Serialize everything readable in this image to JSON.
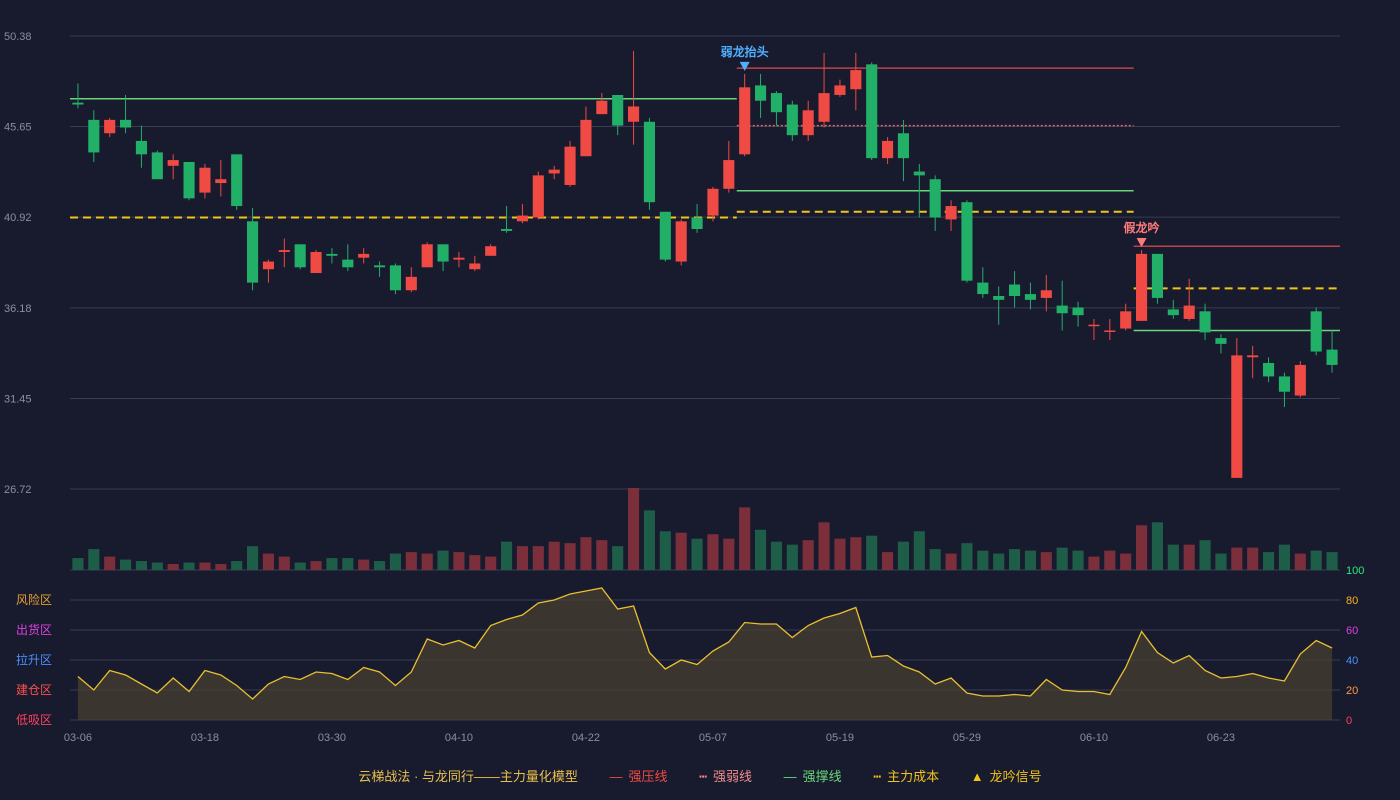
{
  "colors": {
    "background": "#181a2e",
    "grid": "#3a3d52",
    "up": "#ef4a43",
    "down": "#22b068",
    "vol_up": "#7a2f3b",
    "vol_down": "#1e5e48",
    "cost": "#f0c419",
    "strong_press": "#c0404a",
    "weak": "#e06a6a",
    "support": "#6ad67a",
    "osc_line": "#e8c030",
    "osc_fill": "#4a4230"
  },
  "chart_data": {
    "type": "candlestick",
    "price_axis_ticks": [
      "50.38",
      "45.65",
      "40.92",
      "36.18",
      "31.45",
      "26.72"
    ],
    "ylim": [
      26.72,
      50.38
    ],
    "x_tick_labels": [
      {
        "i": 0,
        "label": "03-06"
      },
      {
        "i": 8,
        "label": "03-18"
      },
      {
        "i": 16,
        "label": "03-30"
      },
      {
        "i": 24,
        "label": "04-10"
      },
      {
        "i": 32,
        "label": "04-22"
      },
      {
        "i": 40,
        "label": "05-07"
      },
      {
        "i": 48,
        "label": "05-19"
      },
      {
        "i": 56,
        "label": "05-29"
      },
      {
        "i": 64,
        "label": "06-10"
      },
      {
        "i": 72,
        "label": "06-23"
      }
    ],
    "candles": [
      [
        46.9,
        46.8,
        47.9,
        46.6,
        8
      ],
      [
        46.0,
        44.3,
        46.5,
        43.8,
        14
      ],
      [
        45.3,
        46.0,
        46.1,
        45.1,
        9
      ],
      [
        46.0,
        45.6,
        47.3,
        45.3,
        7
      ],
      [
        44.9,
        44.2,
        45.7,
        43.5,
        6
      ],
      [
        44.3,
        42.9,
        44.4,
        42.9,
        5
      ],
      [
        43.6,
        43.9,
        44.2,
        42.9,
        4
      ],
      [
        43.8,
        41.9,
        43.8,
        41.8,
        5
      ],
      [
        42.2,
        43.5,
        43.7,
        41.9,
        5
      ],
      [
        42.7,
        42.9,
        43.9,
        42.0,
        4
      ],
      [
        44.2,
        41.5,
        44.2,
        41.3,
        6
      ],
      [
        40.7,
        37.5,
        41.4,
        37.1,
        16
      ],
      [
        38.2,
        38.6,
        38.7,
        37.5,
        11
      ],
      [
        39.1,
        39.2,
        39.8,
        38.3,
        9
      ],
      [
        39.5,
        38.3,
        39.5,
        38.2,
        5
      ],
      [
        38.0,
        39.1,
        39.2,
        38.0,
        6
      ],
      [
        39.0,
        38.9,
        39.3,
        38.5,
        8
      ],
      [
        38.7,
        38.3,
        39.5,
        38.1,
        8
      ],
      [
        38.8,
        39.0,
        39.3,
        38.5,
        7
      ],
      [
        38.4,
        38.3,
        38.6,
        37.8,
        6
      ],
      [
        38.4,
        37.1,
        38.5,
        36.9,
        11
      ],
      [
        37.1,
        37.8,
        38.3,
        37.0,
        12
      ],
      [
        38.3,
        39.5,
        39.6,
        38.3,
        11
      ],
      [
        39.5,
        38.6,
        39.5,
        38.1,
        13
      ],
      [
        38.7,
        38.8,
        39.1,
        38.3,
        12
      ],
      [
        38.2,
        38.5,
        38.9,
        38.1,
        10
      ],
      [
        38.9,
        39.4,
        39.5,
        38.9,
        9
      ],
      [
        40.3,
        40.2,
        41.5,
        40.1,
        19
      ],
      [
        40.7,
        41.0,
        41.6,
        40.6,
        16
      ],
      [
        40.9,
        43.1,
        43.3,
        40.8,
        16
      ],
      [
        43.2,
        43.4,
        43.6,
        42.9,
        19
      ],
      [
        42.6,
        44.6,
        44.9,
        42.5,
        18
      ],
      [
        44.1,
        46.0,
        46.7,
        44.1,
        22
      ],
      [
        46.3,
        47.0,
        47.4,
        46.3,
        20
      ],
      [
        47.3,
        45.7,
        47.3,
        45.2,
        16
      ],
      [
        45.9,
        46.7,
        49.6,
        44.7,
        55
      ],
      [
        45.9,
        41.7,
        46.1,
        41.3,
        40
      ],
      [
        41.2,
        38.7,
        41.2,
        38.6,
        26
      ],
      [
        38.6,
        40.7,
        40.8,
        38.4,
        25
      ],
      [
        40.9,
        40.3,
        41.6,
        40.1,
        21
      ],
      [
        41.0,
        42.4,
        42.5,
        40.7,
        24
      ],
      [
        42.4,
        43.9,
        44.9,
        42.2,
        21
      ],
      [
        44.2,
        47.7,
        48.4,
        44.1,
        42
      ],
      [
        47.8,
        47.0,
        48.4,
        46.1,
        27
      ],
      [
        47.4,
        46.4,
        47.5,
        45.7,
        19
      ],
      [
        46.8,
        45.2,
        47.0,
        44.9,
        17
      ],
      [
        45.2,
        46.5,
        47.0,
        44.9,
        20
      ],
      [
        45.9,
        47.4,
        49.5,
        45.6,
        32
      ],
      [
        47.3,
        47.8,
        48.1,
        47.2,
        21
      ],
      [
        47.6,
        48.6,
        49.5,
        46.5,
        22
      ],
      [
        48.9,
        44.0,
        49.0,
        43.9,
        23
      ],
      [
        44.0,
        44.9,
        45.1,
        43.7,
        12
      ],
      [
        45.3,
        44.0,
        46.0,
        42.8,
        19
      ],
      [
        43.3,
        43.1,
        43.7,
        40.9,
        26
      ],
      [
        42.9,
        40.9,
        43.1,
        40.2,
        14
      ],
      [
        40.8,
        41.5,
        41.8,
        40.2,
        11
      ],
      [
        41.7,
        37.6,
        41.8,
        37.5,
        18
      ],
      [
        37.5,
        36.9,
        38.3,
        36.7,
        13
      ],
      [
        36.8,
        36.6,
        37.3,
        35.3,
        11
      ],
      [
        37.4,
        36.8,
        38.1,
        36.2,
        14
      ],
      [
        36.9,
        36.6,
        37.5,
        36.1,
        13
      ],
      [
        36.7,
        37.1,
        37.9,
        36.0,
        12
      ],
      [
        36.3,
        35.9,
        37.6,
        35.0,
        15
      ],
      [
        36.2,
        35.8,
        36.5,
        35.2,
        13
      ],
      [
        35.3,
        35.3,
        35.6,
        34.5,
        9
      ],
      [
        35.0,
        35.0,
        35.6,
        34.5,
        13
      ],
      [
        35.1,
        36.0,
        36.4,
        35.0,
        11
      ],
      [
        35.5,
        39.0,
        39.2,
        35.5,
        30
      ],
      [
        39.0,
        36.7,
        39.0,
        36.4,
        32
      ],
      [
        36.1,
        35.8,
        36.6,
        35.6,
        17
      ],
      [
        35.6,
        36.3,
        37.7,
        35.5,
        17
      ],
      [
        36.0,
        34.9,
        36.4,
        34.5,
        20
      ],
      [
        34.6,
        34.3,
        34.8,
        33.8,
        11
      ],
      [
        27.3,
        33.7,
        34.6,
        27.3,
        15
      ],
      [
        33.6,
        33.7,
        34.2,
        32.5,
        15
      ],
      [
        33.3,
        32.6,
        33.6,
        32.3,
        12
      ],
      [
        32.6,
        31.8,
        32.8,
        31.0,
        17
      ],
      [
        31.6,
        33.2,
        33.4,
        31.5,
        11
      ],
      [
        36.0,
        33.9,
        36.2,
        33.7,
        13
      ],
      [
        34.0,
        33.2,
        35.0,
        32.8,
        12
      ]
    ],
    "oscillator": {
      "ylim": [
        0,
        100
      ],
      "ticks": [
        "100",
        "80",
        "60",
        "40",
        "20",
        "0"
      ],
      "zones": [
        "风险区",
        "出货区",
        "拉升区",
        "建仓区",
        "低吸区"
      ],
      "values": [
        29,
        20,
        33,
        30,
        24,
        18,
        28,
        19,
        33,
        30,
        23,
        14,
        24,
        29,
        27,
        32,
        31,
        27,
        35,
        32,
        23,
        32,
        54,
        50,
        53,
        48,
        63,
        67,
        70,
        78,
        80,
        84,
        86,
        88,
        74,
        76,
        45,
        34,
        40,
        37,
        46,
        52,
        65,
        64,
        64,
        55,
        63,
        68,
        71,
        75,
        42,
        43,
        36,
        32,
        24,
        28,
        18,
        16,
        16,
        17,
        16,
        27,
        20,
        19,
        19,
        17,
        35,
        59,
        45,
        38,
        43,
        33,
        28,
        29,
        31,
        28,
        26,
        44,
        53,
        48
      ]
    },
    "signals": [
      {
        "i": 42,
        "label": "弱龙抬头",
        "color": "#4fb0ff",
        "dir": "down"
      },
      {
        "i": 67,
        "label": "假龙吟",
        "color": "#ff7b7b",
        "dir": "down"
      }
    ],
    "levels": [
      {
        "kind": "support",
        "y": 47.1,
        "from": 0,
        "to": 41
      },
      {
        "kind": "cost",
        "y": 40.9,
        "from": 0,
        "to": 41
      },
      {
        "kind": "strong_press",
        "y": 48.7,
        "from": 42,
        "to": 66
      },
      {
        "kind": "weak",
        "y": 45.7,
        "from": 42,
        "to": 66
      },
      {
        "kind": "support",
        "y": 42.3,
        "from": 42,
        "to": 66
      },
      {
        "kind": "cost",
        "y": 41.2,
        "from": 42,
        "to": 66
      },
      {
        "kind": "strong_press",
        "y": 39.4,
        "from": 67,
        "to": 79
      },
      {
        "kind": "cost",
        "y": 37.2,
        "from": 67,
        "to": 79
      },
      {
        "kind": "support",
        "y": 35.0,
        "from": 67,
        "to": 79
      }
    ]
  },
  "legend": {
    "title": "云梯战法 · 与龙同行——主力量化模型",
    "items": [
      {
        "symbol": "—",
        "label": "强压线",
        "color": "#ef4a43"
      },
      {
        "symbol": "┅",
        "label": "强弱线",
        "color": "#f28b8b"
      },
      {
        "symbol": "—",
        "label": "强撑线",
        "color": "#6ad67a"
      },
      {
        "symbol": "┅",
        "label": "主力成本",
        "color": "#f0c419"
      },
      {
        "symbol": "▲",
        "label": "龙吟信号",
        "color": "#f0c419"
      }
    ]
  }
}
